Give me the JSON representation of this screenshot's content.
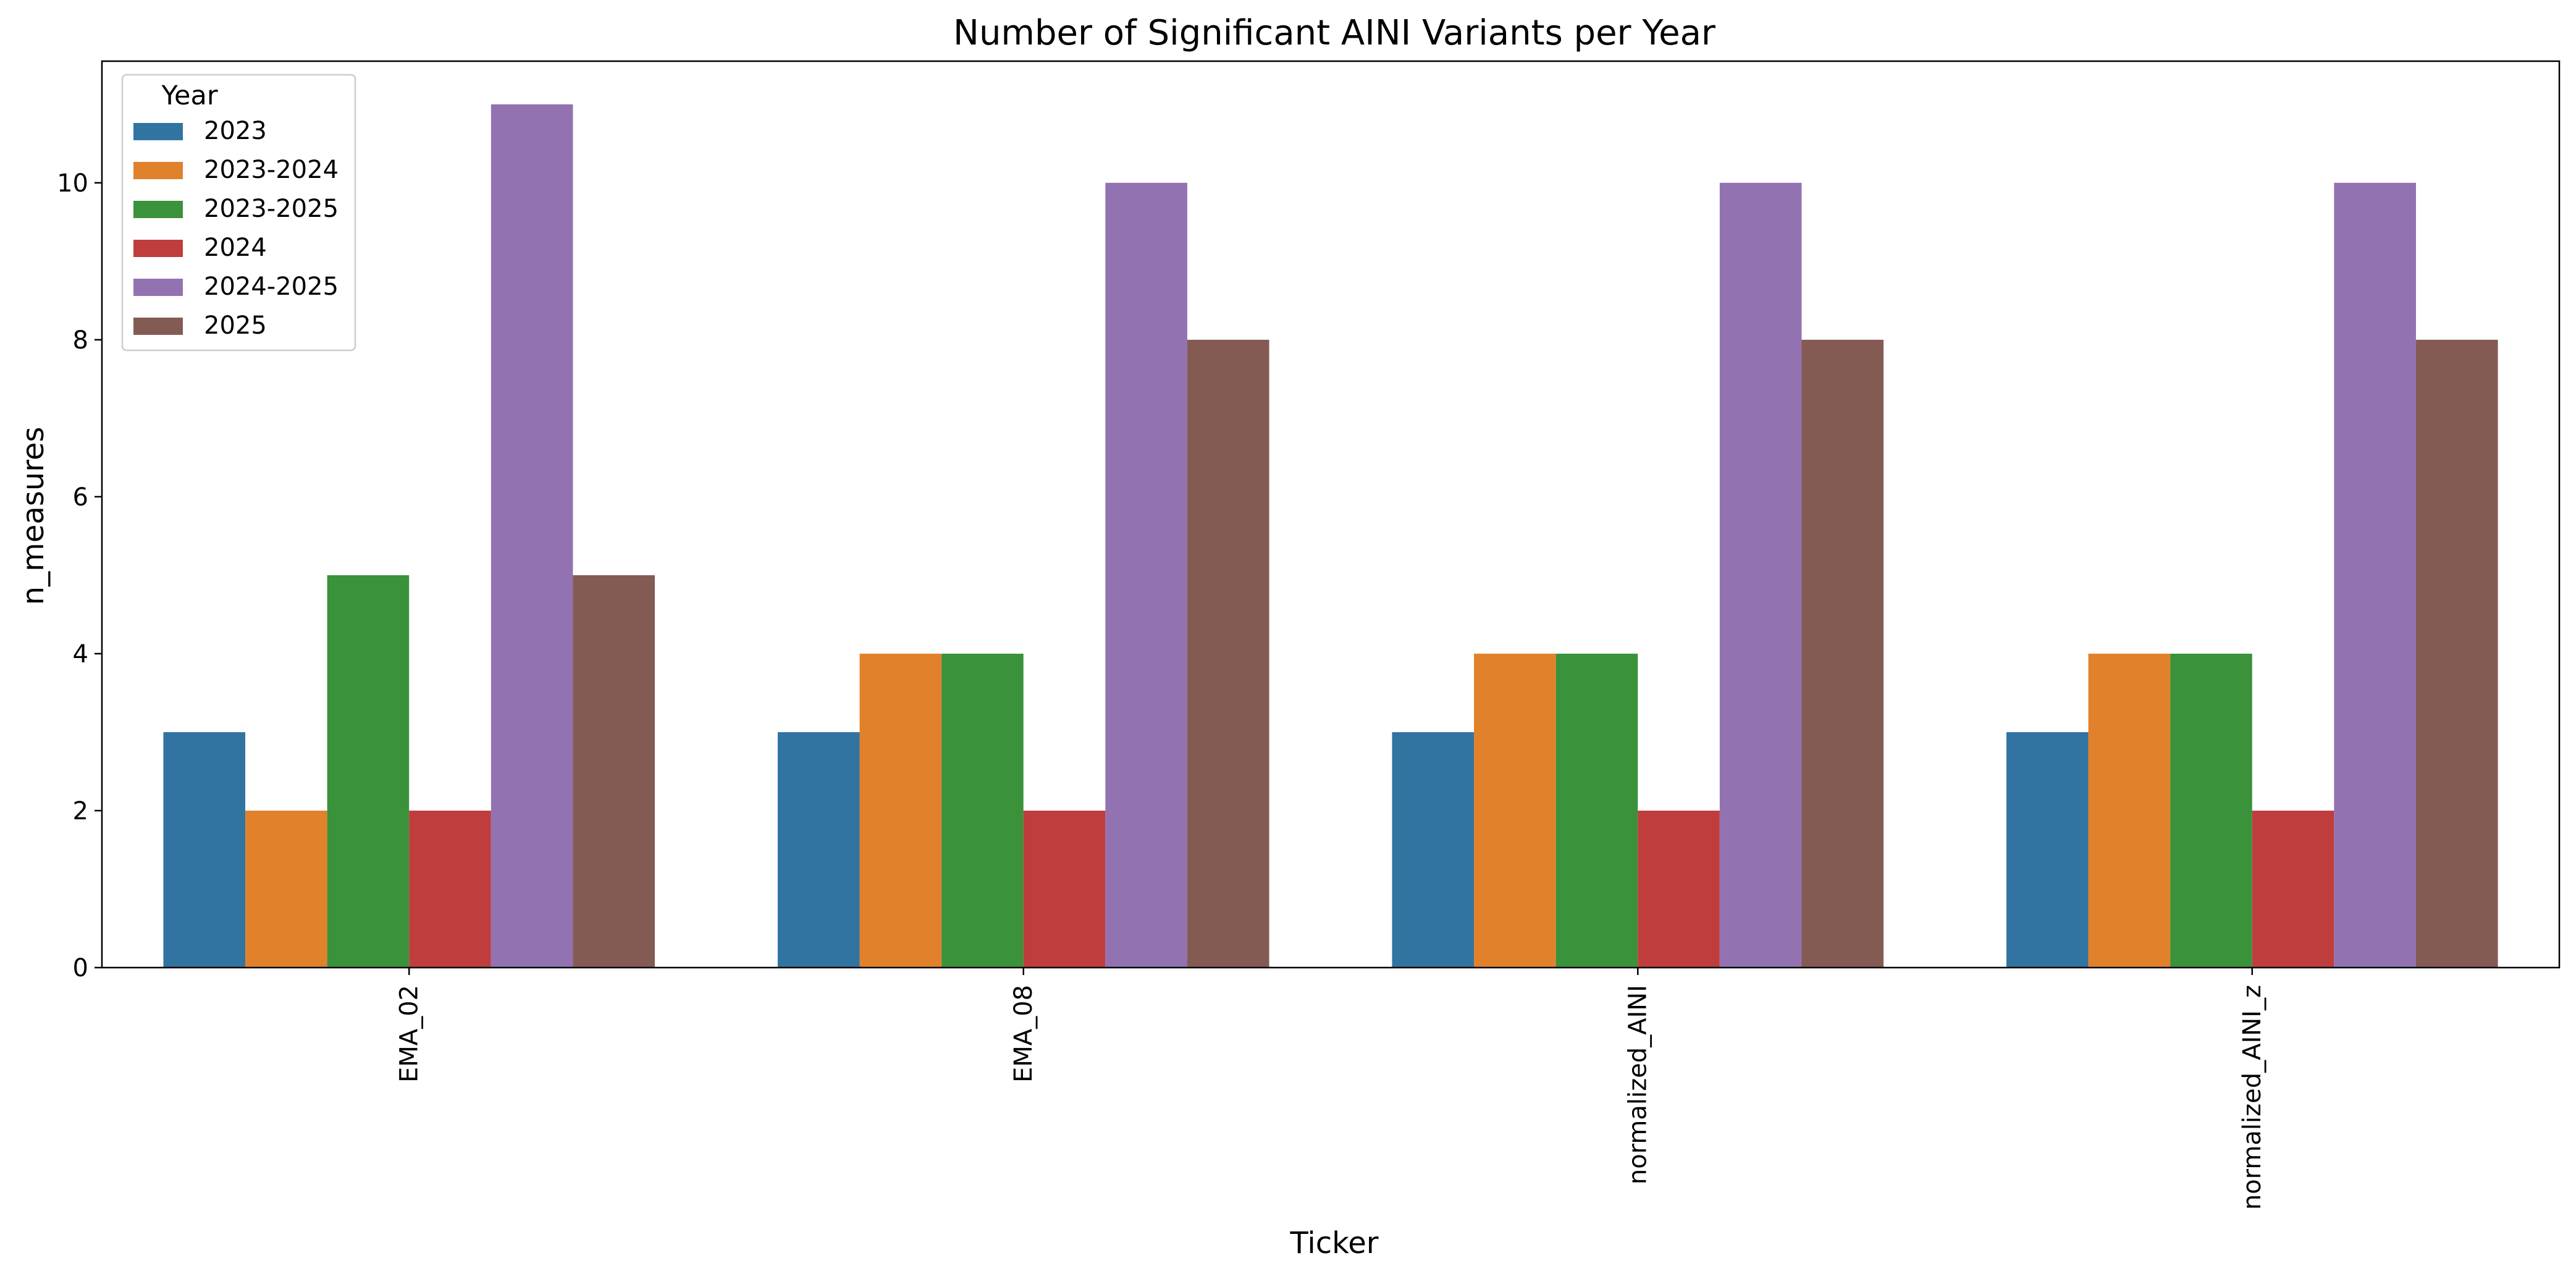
{
  "chart_data": {
    "type": "bar",
    "title": "Number of Significant AINI Variants per Year",
    "xlabel": "Ticker",
    "ylabel": "n_measures",
    "categories": [
      "EMA_02",
      "EMA_08",
      "normalized_AINI",
      "normalized_AINI_z"
    ],
    "series": [
      {
        "name": "2023",
        "color": "#3274a1",
        "values": [
          3,
          3,
          3,
          3
        ]
      },
      {
        "name": "2023-2024",
        "color": "#e1812c",
        "values": [
          2,
          4,
          4,
          4
        ]
      },
      {
        "name": "2023-2025",
        "color": "#3a923a",
        "values": [
          5,
          4,
          4,
          4
        ]
      },
      {
        "name": "2024",
        "color": "#c03d3e",
        "values": [
          2,
          2,
          2,
          2
        ]
      },
      {
        "name": "2024-2025",
        "color": "#9372b2",
        "values": [
          11,
          10,
          10,
          10
        ]
      },
      {
        "name": "2025",
        "color": "#845b53",
        "values": [
          5,
          8,
          8,
          8
        ]
      }
    ],
    "ylim": [
      0,
      11.55
    ],
    "yticks": [
      0,
      2,
      4,
      6,
      8,
      10
    ],
    "legend": {
      "title": "Year",
      "placement": "top-left"
    },
    "grid": false
  }
}
